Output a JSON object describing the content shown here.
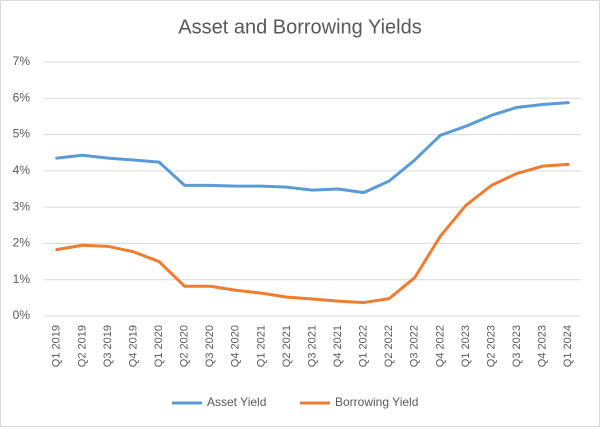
{
  "chart_data": {
    "type": "line",
    "title": "Asset and Borrowing Yields",
    "categories": [
      "Q1 2019",
      "Q2 2019",
      "Q3 2019",
      "Q4 2019",
      "Q1 2020",
      "Q2 2020",
      "Q3 2020",
      "Q4 2020",
      "Q1 2021",
      "Q2 2021",
      "Q3 2021",
      "Q4 2021",
      "Q1 2022",
      "Q2 2022",
      "Q3 2022",
      "Q4 2022",
      "Q1 2023",
      "Q2 2023",
      "Q3 2023",
      "Q4 2023",
      "Q1 2024"
    ],
    "series": [
      {
        "name": "Asset Yield",
        "color": "#5b9bd5",
        "values": [
          4.35,
          4.43,
          4.35,
          4.3,
          4.24,
          3.6,
          3.6,
          3.58,
          3.58,
          3.55,
          3.47,
          3.5,
          3.4,
          3.72,
          4.3,
          4.98,
          5.23,
          5.53,
          5.75,
          5.83,
          5.88
        ]
      },
      {
        "name": "Borrowing Yield",
        "color": "#ed7d31",
        "values": [
          1.83,
          1.95,
          1.92,
          1.77,
          1.5,
          0.82,
          0.82,
          0.71,
          0.63,
          0.52,
          0.47,
          0.41,
          0.37,
          0.48,
          1.06,
          2.2,
          3.05,
          3.6,
          3.93,
          4.13,
          4.18
        ]
      }
    ],
    "ylim": [
      0,
      7
    ],
    "yticks": [
      {
        "value": 0,
        "label": "0%"
      },
      {
        "value": 1,
        "label": "1%"
      },
      {
        "value": 2,
        "label": "2%"
      },
      {
        "value": 3,
        "label": "3%"
      },
      {
        "value": 4,
        "label": "4%"
      },
      {
        "value": 5,
        "label": "5%"
      },
      {
        "value": 6,
        "label": "6%"
      },
      {
        "value": 7,
        "label": "7%"
      }
    ],
    "grid": true,
    "legend": "bottom"
  }
}
